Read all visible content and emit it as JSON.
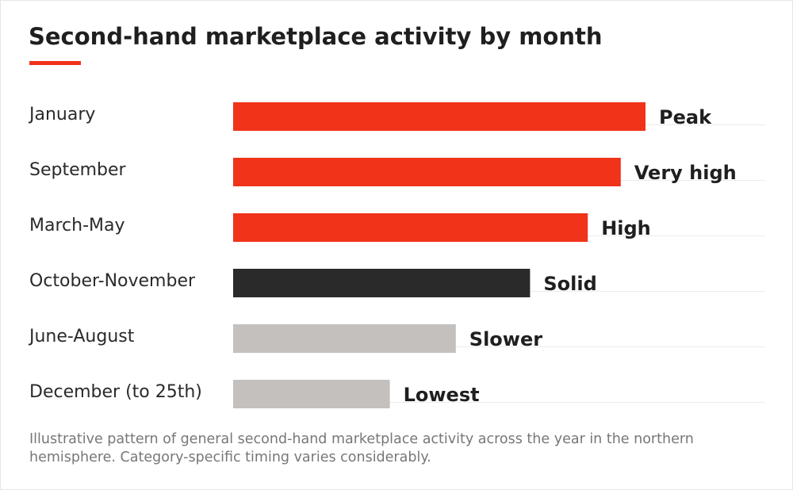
{
  "header": {
    "title": "Second-hand marketplace activity by month"
  },
  "footer": {
    "note": "Illustrative pattern of general second-hand marketplace activity across the year in the northern hemisphere. Category-specific timing varies considerably."
  },
  "colors": {
    "accent": "#f03319",
    "dark": "#2a2a2a",
    "muted": "#c3c0bd"
  },
  "chart_data": {
    "type": "bar",
    "orientation": "horizontal",
    "title": "Second-hand marketplace activity by month",
    "xlabel": "",
    "ylabel": "",
    "grid": false,
    "legend": "none",
    "value_scale": "relative activity (unlabeled, 0–1)",
    "categories": [
      "January",
      "September",
      "March-May",
      "October-November",
      "June-August",
      "December (to 25th)"
    ],
    "values": [
      1.0,
      0.94,
      0.86,
      0.72,
      0.54,
      0.38
    ],
    "value_labels": [
      "Peak",
      "Very high",
      "High",
      "Solid",
      "Slower",
      "Lowest"
    ],
    "bar_colors": [
      "#f03319",
      "#f03319",
      "#f03319",
      "#2a2a2a",
      "#c3c0bd",
      "#c3c0bd"
    ]
  }
}
